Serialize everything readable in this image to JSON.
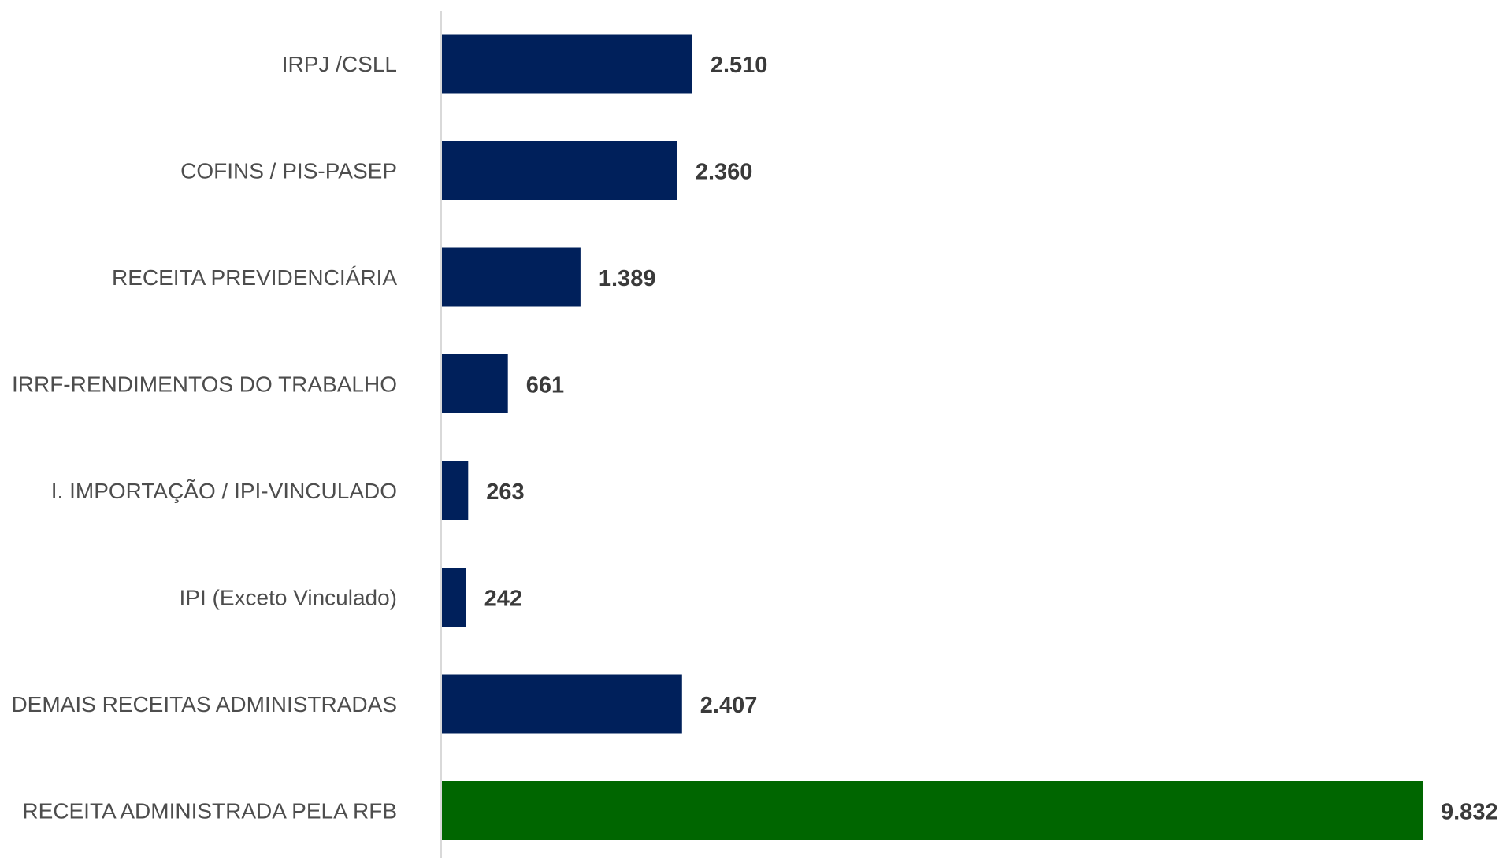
{
  "chart_data": {
    "type": "bar",
    "orientation": "horizontal",
    "categories": [
      "IRPJ /CSLL",
      "COFINS / PIS-PASEP",
      "RECEITA PREVIDENCIÁRIA",
      "IRRF-RENDIMENTOS DO TRABALHO",
      "I. IMPORTAÇÃO / IPI-VINCULADO",
      "IPI (Exceto Vinculado)",
      "DEMAIS RECEITAS ADMINISTRADAS",
      "RECEITA ADMINISTRADA PELA RFB"
    ],
    "values": [
      2510,
      2360,
      1389,
      661,
      263,
      242,
      2407,
      9832
    ],
    "value_labels": [
      "2.510",
      "2.360",
      "1.389",
      "661",
      "263",
      "242",
      "2.407",
      "9.832"
    ],
    "colors": [
      "#00205b",
      "#00205b",
      "#00205b",
      "#00205b",
      "#00205b",
      "#00205b",
      "#00205b",
      "#006600"
    ],
    "title": "",
    "xlabel": "",
    "ylabel": "",
    "xlim": [
      0,
      9832
    ],
    "grid": false,
    "legend": "none"
  }
}
